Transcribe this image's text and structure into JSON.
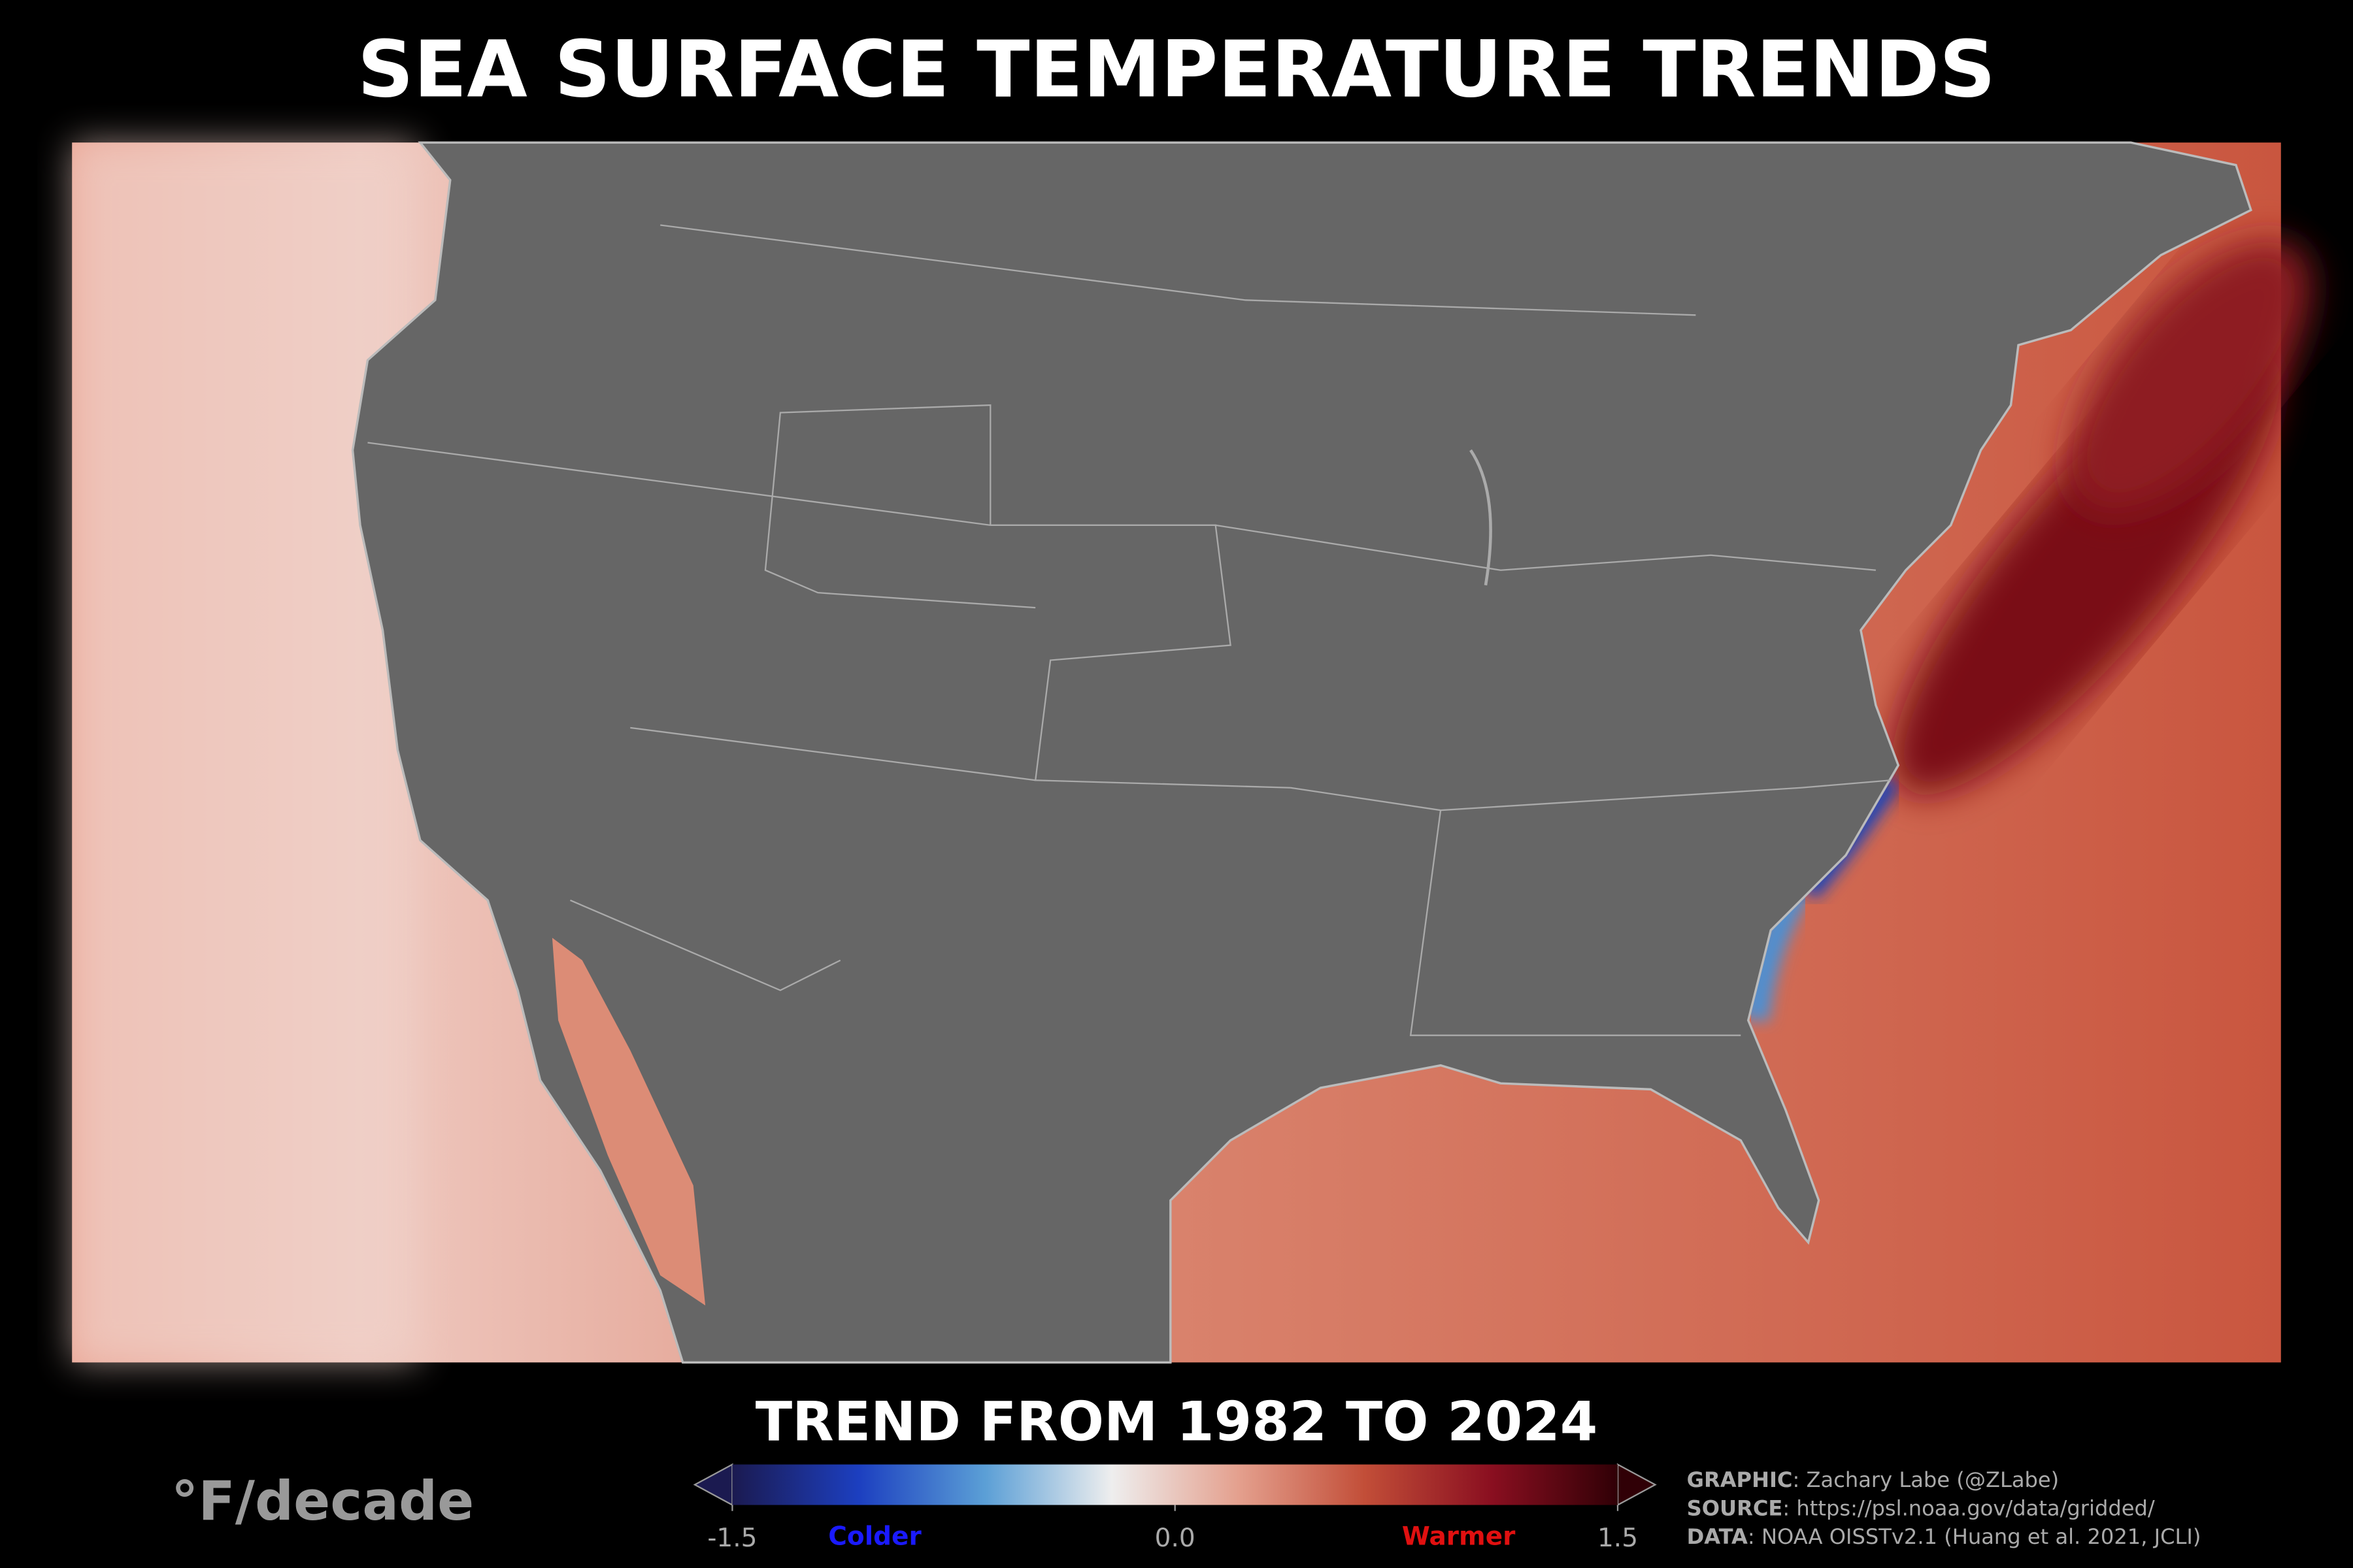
{
  "chart_data": {
    "type": "colormap-map",
    "title": "SEA SURFACE TEMPERATURE TRENDS",
    "subtitle": "TREND FROM 1982 TO 2024",
    "unit": "°F/decade",
    "clim": [
      -1.5,
      1.5
    ],
    "ticks": [
      -1.5,
      {
        "value": 0,
        "label": "0.0"
      },
      1.5
    ],
    "cold_label": "Colder",
    "warm_label": "Warmer",
    "colors": [
      "#1b1a50",
      "#1c3fc0",
      "#5b9fd6",
      "#eeeeee",
      "#e4a08e",
      "#c24e38",
      "#8a0f20",
      "#300006"
    ],
    "credits": [
      {
        "label": "GRAPHIC",
        "text": ": Zachary Labe (@ZLabe)"
      },
      {
        "label": "SOURCE",
        "text": ": https://psl.noaa.gov/data/gridded/"
      },
      {
        "label": "DATA",
        "text": ": NOAA OISSTv2.1 (Huang et al. 2021, JCLI)"
      }
    ]
  }
}
